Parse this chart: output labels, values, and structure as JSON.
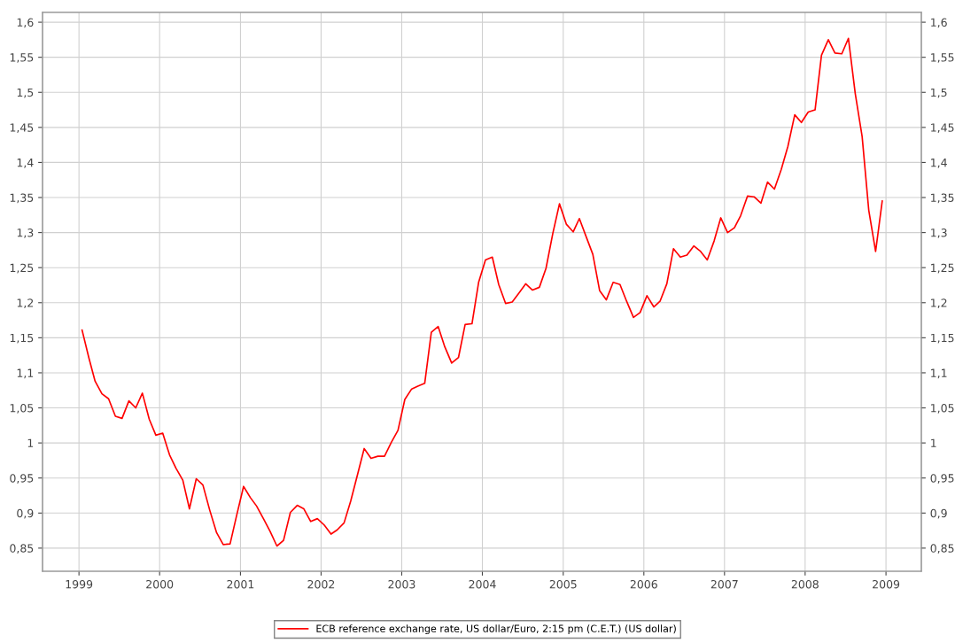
{
  "chart_data": {
    "type": "line",
    "x": [
      "1999-01-15",
      "1999-02-15",
      "1999-03-15",
      "1999-04-15",
      "1999-05-15",
      "1999-06-15",
      "1999-07-15",
      "1999-08-15",
      "1999-09-15",
      "1999-10-15",
      "1999-11-15",
      "1999-12-15",
      "2000-01-15",
      "2000-02-15",
      "2000-03-15",
      "2000-04-15",
      "2000-05-15",
      "2000-06-15",
      "2000-07-15",
      "2000-08-15",
      "2000-09-15",
      "2000-10-15",
      "2000-11-15",
      "2000-12-15",
      "2001-01-15",
      "2001-02-15",
      "2001-03-15",
      "2001-04-15",
      "2001-05-15",
      "2001-06-15",
      "2001-07-15",
      "2001-08-15",
      "2001-09-15",
      "2001-10-15",
      "2001-11-15",
      "2001-12-15",
      "2002-01-15",
      "2002-02-15",
      "2002-03-15",
      "2002-04-15",
      "2002-05-15",
      "2002-06-15",
      "2002-07-15",
      "2002-08-15",
      "2002-09-15",
      "2002-10-15",
      "2002-11-15",
      "2002-12-15",
      "2003-01-15",
      "2003-02-15",
      "2003-03-15",
      "2003-04-15",
      "2003-05-15",
      "2003-06-15",
      "2003-07-15",
      "2003-08-15",
      "2003-09-15",
      "2003-10-15",
      "2003-11-15",
      "2003-12-15",
      "2004-01-15",
      "2004-02-15",
      "2004-03-15",
      "2004-04-15",
      "2004-05-15",
      "2004-06-15",
      "2004-07-15",
      "2004-08-15",
      "2004-09-15",
      "2004-10-15",
      "2004-11-15",
      "2004-12-15",
      "2005-01-15",
      "2005-02-15",
      "2005-03-15",
      "2005-04-15",
      "2005-05-15",
      "2005-06-15",
      "2005-07-15",
      "2005-08-15",
      "2005-09-15",
      "2005-10-15",
      "2005-11-15",
      "2005-12-15",
      "2006-01-15",
      "2006-02-15",
      "2006-03-15",
      "2006-04-15",
      "2006-05-15",
      "2006-06-15",
      "2006-07-15",
      "2006-08-15",
      "2006-09-15",
      "2006-10-15",
      "2006-11-15",
      "2006-12-15",
      "2007-01-15",
      "2007-02-15",
      "2007-03-15",
      "2007-04-15",
      "2007-05-15",
      "2007-06-15",
      "2007-07-15",
      "2007-08-15",
      "2007-09-15",
      "2007-10-15",
      "2007-11-15",
      "2007-12-15",
      "2008-01-15",
      "2008-02-15",
      "2008-03-15",
      "2008-04-15",
      "2008-05-15",
      "2008-06-15",
      "2008-07-15",
      "2008-08-15",
      "2008-09-15",
      "2008-10-15",
      "2008-11-15",
      "2008-12-15"
    ],
    "series": [
      {
        "name": "ECB reference exchange rate, US dollar/Euro, 2:15 pm (C.E.T.) (US dollar)",
        "color": "#ff0000",
        "values": [
          1.161,
          1.121,
          1.088,
          1.07,
          1.063,
          1.038,
          1.035,
          1.06,
          1.05,
          1.071,
          1.034,
          1.011,
          1.014,
          0.983,
          0.964,
          0.947,
          0.906,
          0.949,
          0.94,
          0.904,
          0.872,
          0.855,
          0.856,
          0.897,
          0.938,
          0.922,
          0.91,
          0.892,
          0.874,
          0.853,
          0.861,
          0.901,
          0.911,
          0.906,
          0.888,
          0.892,
          0.883,
          0.87,
          0.876,
          0.886,
          0.917,
          0.955,
          0.992,
          0.978,
          0.981,
          0.981,
          1.001,
          1.018,
          1.062,
          1.077,
          1.081,
          1.085,
          1.158,
          1.166,
          1.137,
          1.114,
          1.122,
          1.169,
          1.17,
          1.229,
          1.261,
          1.265,
          1.226,
          1.199,
          1.201,
          1.214,
          1.227,
          1.218,
          1.222,
          1.249,
          1.299,
          1.341,
          1.312,
          1.301,
          1.32,
          1.294,
          1.269,
          1.217,
          1.204,
          1.229,
          1.226,
          1.202,
          1.179,
          1.186,
          1.21,
          1.194,
          1.202,
          1.227,
          1.277,
          1.265,
          1.268,
          1.281,
          1.273,
          1.261,
          1.288,
          1.321,
          1.3,
          1.307,
          1.324,
          1.352,
          1.351,
          1.342,
          1.372,
          1.362,
          1.39,
          1.423,
          1.468,
          1.457,
          1.472,
          1.475,
          1.553,
          1.575,
          1.556,
          1.555,
          1.577,
          1.498,
          1.437,
          1.332,
          1.273,
          1.345
        ]
      }
    ],
    "xlim": [
      "1998-07-20",
      "2009-06-10"
    ],
    "xticks": [
      "1999",
      "2000",
      "2001",
      "2002",
      "2003",
      "2004",
      "2005",
      "2006",
      "2007",
      "2008",
      "2009"
    ],
    "ylim": [
      0.817,
      1.614
    ],
    "yticks": [
      {
        "value": 0.85,
        "label": "0,85"
      },
      {
        "value": 0.9,
        "label": "0,9"
      },
      {
        "value": 0.95,
        "label": "0,95"
      },
      {
        "value": 1,
        "label": "1"
      },
      {
        "value": 1.05,
        "label": "1,05"
      },
      {
        "value": 1.1,
        "label": "1,1"
      },
      {
        "value": 1.15,
        "label": "1,15"
      },
      {
        "value": 1.2,
        "label": "1,2"
      },
      {
        "value": 1.25,
        "label": "1,25"
      },
      {
        "value": 1.3,
        "label": "1,3"
      },
      {
        "value": 1.35,
        "label": "1,35"
      },
      {
        "value": 1.4,
        "label": "1,4"
      },
      {
        "value": 1.45,
        "label": "1,45"
      },
      {
        "value": 1.5,
        "label": "1,5"
      },
      {
        "value": 1.55,
        "label": "1,55"
      },
      {
        "value": 1.6,
        "label": "1,6"
      }
    ],
    "y2lim": [
      0.817,
      1.614
    ],
    "y2ticks": [
      {
        "value": 0.85,
        "label": "0,85"
      },
      {
        "value": 0.9,
        "label": "0,9"
      },
      {
        "value": 0.95,
        "label": "0,95"
      },
      {
        "value": 1,
        "label": "1"
      },
      {
        "value": 1.05,
        "label": "1,05"
      },
      {
        "value": 1.1,
        "label": "1,1"
      },
      {
        "value": 1.15,
        "label": "1,15"
      },
      {
        "value": 1.2,
        "label": "1,2"
      },
      {
        "value": 1.25,
        "label": "1,25"
      },
      {
        "value": 1.3,
        "label": "1,3"
      },
      {
        "value": 1.35,
        "label": "1,35"
      },
      {
        "value": 1.4,
        "label": "1,4"
      },
      {
        "value": 1.45,
        "label": "1,45"
      },
      {
        "value": 1.5,
        "label": "1,5"
      },
      {
        "value": 1.55,
        "label": "1,55"
      },
      {
        "value": 1.6,
        "label": "1,6"
      }
    ],
    "grid": true,
    "legend": "bottom",
    "marker": "none",
    "line_style": "solid"
  }
}
